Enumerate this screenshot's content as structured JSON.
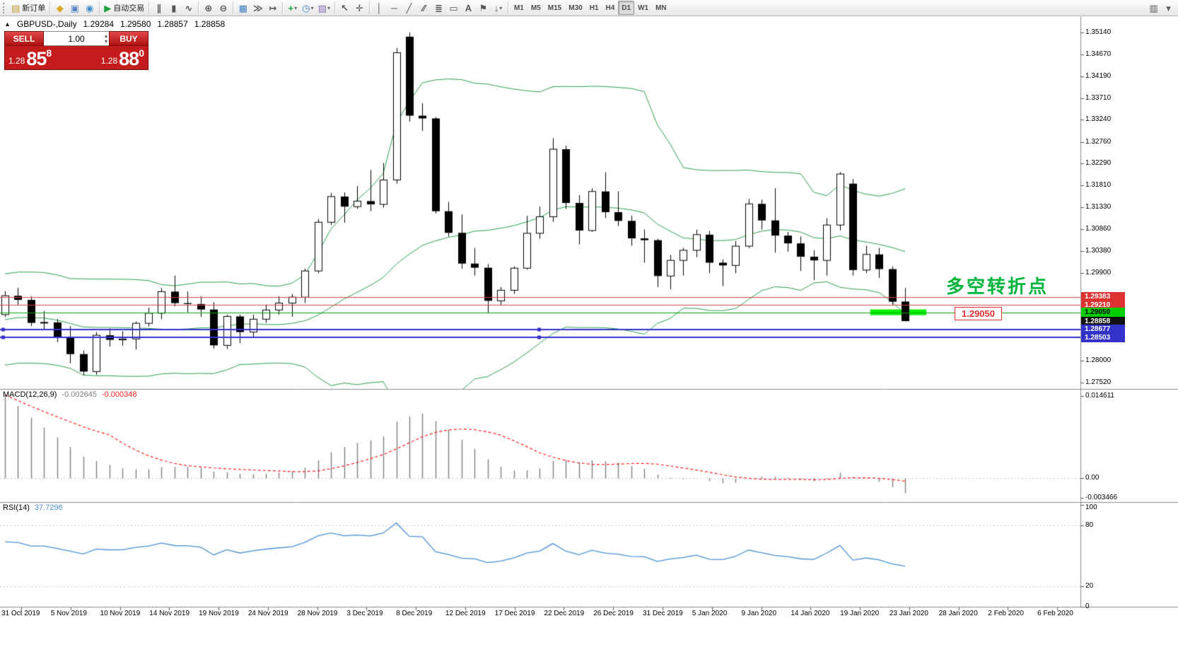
{
  "toolbar": {
    "groups": [
      [
        {
          "name": "new-order-button",
          "glyph": "▤",
          "glyph_color": "#c59a30",
          "label": "新订单"
        }
      ],
      [
        {
          "name": "symbols-button",
          "glyph": "◆",
          "glyph_color": "#d8a820"
        },
        {
          "name": "data-window-button",
          "glyph": "▣",
          "glyph_color": "#5b87c5"
        },
        {
          "name": "navigator-button",
          "glyph": "◉",
          "glyph_color": "#3f8fd0"
        }
      ],
      [
        {
          "name": "autotrading-button",
          "glyph": "▶",
          "glyph_color": "#1fa33c",
          "label": "自动交易"
        }
      ],
      [
        {
          "name": "ohlc-bars-button",
          "glyph": "∥"
        },
        {
          "name": "candlestick-chart-button",
          "glyph": "▮"
        },
        {
          "name": "line-chart-button",
          "glyph": "∿"
        }
      ],
      [
        {
          "name": "zoom-in-button",
          "glyph": "⊕"
        },
        {
          "name": "zoom-out-button",
          "glyph": "⊖"
        }
      ],
      [
        {
          "name": "tile-windows-button",
          "glyph": "▦",
          "glyph_color": "#3f7fbf"
        },
        {
          "name": "auto-scroll-button",
          "glyph": "≫"
        },
        {
          "name": "chart-shift-button",
          "glyph": "↦"
        }
      ],
      [
        {
          "name": "indicators-button",
          "glyph": "+",
          "glyph_color": "#1fa33c",
          "dropdown": true
        },
        {
          "name": "periods-button",
          "glyph": "◷",
          "glyph_color": "#3f7fbf",
          "dropdown": true
        },
        {
          "name": "templates-button",
          "glyph": "▨",
          "glyph_color": "#8a6fae",
          "dropdown": true
        }
      ],
      [
        {
          "name": "cursor-button",
          "glyph": "↖"
        },
        {
          "name": "crosshair-button",
          "glyph": "✛"
        }
      ],
      [
        {
          "name": "vertical-line-button",
          "glyph": "│"
        },
        {
          "name": "horizontal-line-button",
          "glyph": "─"
        },
        {
          "name": "trendline-button",
          "glyph": "╱"
        },
        {
          "name": "equidistant-channel-button",
          "glyph": "∕∕"
        },
        {
          "name": "fibonacci-button",
          "glyph": "≣"
        },
        {
          "name": "shapes-button",
          "glyph": "▭"
        },
        {
          "name": "text-button",
          "glyph": "A"
        },
        {
          "name": "text-label-button",
          "glyph": "⚑"
        },
        {
          "name": "arrows-button",
          "glyph": "↓",
          "dropdown": true
        }
      ],
      [
        {
          "name": "timeframe-m1-button",
          "text": "M1"
        },
        {
          "name": "timeframe-m5-button",
          "text": "M5"
        },
        {
          "name": "timeframe-m15-button",
          "text": "M15"
        },
        {
          "name": "timeframe-m30-button",
          "text": "M30"
        },
        {
          "name": "timeframe-h1-button",
          "text": "H1"
        },
        {
          "name": "timeframe-h4-button",
          "text": "H4"
        },
        {
          "name": "timeframe-d1-button",
          "text": "D1",
          "active": true
        },
        {
          "name": "timeframe-w1-button",
          "text": "W1"
        },
        {
          "name": "timeframe-mn-button",
          "text": "MN"
        }
      ]
    ],
    "right": [
      {
        "name": "chart-profile-button",
        "glyph": "▥"
      },
      {
        "name": "toolbar-options-button",
        "glyph": "▾"
      }
    ]
  },
  "chart": {
    "info": {
      "collapse_icon": "▲",
      "symbol": "GBPUSD-,Daily",
      "open": "1.29284",
      "high": "1.29580",
      "low": "1.28857",
      "close": "1.28858"
    },
    "one_click": {
      "sell_label": "SELL",
      "buy_label": "BUY",
      "volume": "1.00",
      "spin_up_icon": "▴",
      "spin_down_icon": "▾",
      "sell_price_head": "1.28",
      "sell_price_big": "85",
      "sell_price_pip": "8",
      "buy_price_head": "1.28",
      "buy_price_big": "88",
      "buy_price_pip": "0"
    },
    "annotation": {
      "text": "多空转折点",
      "color": "#00b43c"
    },
    "price_label_box": {
      "text": "1.29050",
      "color": "#e03030"
    },
    "price_axis": {
      "labels": [
        "1.35140",
        "1.34670",
        "1.34190",
        "1.33710",
        "1.33240",
        "1.32760",
        "1.32290",
        "1.31810",
        "1.31330",
        "1.30860",
        "1.30380",
        "1.29900",
        "1.28000",
        "1.27520"
      ],
      "tags": [
        {
          "text": "1.29383",
          "bg": "#dd3333",
          "fg": "#ffffff"
        },
        {
          "text": "1.29210",
          "bg": "#dd3333",
          "fg": "#ffffff"
        },
        {
          "text": "1.29050",
          "bg": "#00cc00",
          "fg": "#000000"
        },
        {
          "text": "1.28858",
          "bg": "#111111",
          "fg": "#ffffff"
        },
        {
          "text": "1.28677",
          "bg": "#3333cc",
          "fg": "#ffffff"
        },
        {
          "text": "1.28503",
          "bg": "#3333cc",
          "fg": "#ffffff"
        }
      ]
    }
  },
  "macd": {
    "name": "MACD(12,26,9)",
    "main_value": "-0.002645",
    "signal_value": "-0.000348",
    "axis": [
      "0.014611",
      "0.00",
      "-0.003466"
    ]
  },
  "rsi": {
    "name": "RSI(14)",
    "value": "37.7296",
    "axis": [
      "100",
      "80",
      "20",
      "0"
    ]
  },
  "time_axis": {
    "dates": [
      "31 Oct 2019",
      "5 Nov 2019",
      "10 Nov 2019",
      "14 Nov 2019",
      "19 Nov 2019",
      "24 Nov 2019",
      "28 Nov 2019",
      "3 Dec 2019",
      "8 Dec 2019",
      "12 Dec 2019",
      "17 Dec 2019",
      "22 Dec 2019",
      "26 Dec 2019",
      "31 Dec 2019",
      "5 Jan 2020",
      "9 Jan 2020",
      "14 Jan 2020",
      "19 Jan 2020",
      "23 Jan 2020",
      "28 Jan 2020",
      "2 Feb 2020",
      "6 Feb 2020"
    ]
  },
  "chart_data": {
    "type": "candlestick",
    "symbol": "GBPUSD",
    "timeframe": "Daily",
    "y_axis_range": [
      1.2752,
      1.3514
    ],
    "x_axis_dates": [
      "31 Oct 2019",
      "5 Nov 2019",
      "10 Nov 2019",
      "14 Nov 2019",
      "19 Nov 2019",
      "24 Nov 2019",
      "28 Nov 2019",
      "3 Dec 2019",
      "8 Dec 2019",
      "12 Dec 2019",
      "17 Dec 2019",
      "22 Dec 2019",
      "26 Dec 2019",
      "31 Dec 2019",
      "5 Jan 2020",
      "9 Jan 2020",
      "14 Jan 2020",
      "19 Jan 2020",
      "23 Jan 2020",
      "28 Jan 2020",
      "2 Feb 2020",
      "6 Feb 2020"
    ],
    "candles_ohlc": [
      [
        1.29,
        1.2951,
        1.2895,
        1.2941
      ],
      [
        1.2941,
        1.2958,
        1.292,
        1.2932
      ],
      [
        1.2932,
        1.294,
        1.2875,
        1.2882
      ],
      [
        1.2882,
        1.2908,
        1.2869,
        1.2883
      ],
      [
        1.2883,
        1.289,
        1.284,
        1.2851
      ],
      [
        1.2851,
        1.2875,
        1.2794,
        1.2814
      ],
      [
        1.2814,
        1.2822,
        1.2768,
        1.2776
      ],
      [
        1.2776,
        1.2862,
        1.2769,
        1.2855
      ],
      [
        1.2855,
        1.287,
        1.283,
        1.2845
      ],
      [
        1.2845,
        1.2864,
        1.2832,
        1.2847
      ],
      [
        1.2847,
        1.2885,
        1.2824,
        1.2881
      ],
      [
        1.2881,
        1.2915,
        1.2874,
        1.2903
      ],
      [
        1.2903,
        1.2958,
        1.289,
        1.295
      ],
      [
        1.295,
        1.2985,
        1.2918,
        1.2925
      ],
      [
        1.2925,
        1.295,
        1.2905,
        1.2923
      ],
      [
        1.2923,
        1.294,
        1.2895,
        1.2911
      ],
      [
        1.2911,
        1.2927,
        1.2826,
        1.2833
      ],
      [
        1.2833,
        1.29,
        1.2825,
        1.2896
      ],
      [
        1.2896,
        1.29,
        1.2838,
        1.2862
      ],
      [
        1.2862,
        1.29,
        1.285,
        1.289
      ],
      [
        1.289,
        1.2922,
        1.2882,
        1.291
      ],
      [
        1.291,
        1.294,
        1.29,
        1.2925
      ],
      [
        1.2925,
        1.2945,
        1.2895,
        1.2938
      ],
      [
        1.2938,
        1.3,
        1.2925,
        1.2995
      ],
      [
        1.2995,
        1.3108,
        1.299,
        1.3101
      ],
      [
        1.3101,
        1.3165,
        1.3095,
        1.3157
      ],
      [
        1.3157,
        1.3166,
        1.31,
        1.3135
      ],
      [
        1.3135,
        1.318,
        1.313,
        1.3147
      ],
      [
        1.3147,
        1.3215,
        1.3125,
        1.314
      ],
      [
        1.314,
        1.323,
        1.3133,
        1.3193
      ],
      [
        1.3193,
        1.348,
        1.3185,
        1.347
      ],
      [
        1.3505,
        1.3514,
        1.332,
        1.3333
      ],
      [
        1.3333,
        1.336,
        1.33,
        1.3327
      ],
      [
        1.3327,
        1.333,
        1.312,
        1.3125
      ],
      [
        1.3125,
        1.3145,
        1.307,
        1.3078
      ],
      [
        1.3078,
        1.3118,
        1.3,
        1.3011
      ],
      [
        1.3011,
        1.3045,
        1.2985,
        1.3002
      ],
      [
        1.3002,
        1.301,
        1.2904,
        1.293
      ],
      [
        1.293,
        1.296,
        1.292,
        1.2953
      ],
      [
        1.2953,
        1.3005,
        1.2945,
        1.3001
      ],
      [
        1.3001,
        1.3115,
        1.2998,
        1.3077
      ],
      [
        1.3077,
        1.3135,
        1.3065,
        1.3113
      ],
      [
        1.3113,
        1.3284,
        1.3102,
        1.326
      ],
      [
        1.326,
        1.3268,
        1.313,
        1.3143
      ],
      [
        1.3143,
        1.316,
        1.3053,
        1.3083
      ],
      [
        1.3083,
        1.3175,
        1.308,
        1.3168
      ],
      [
        1.3168,
        1.321,
        1.311,
        1.3123
      ],
      [
        1.3123,
        1.3168,
        1.3093,
        1.3104
      ],
      [
        1.3104,
        1.3115,
        1.305,
        1.3066
      ],
      [
        1.3066,
        1.3085,
        1.3013,
        1.3062
      ],
      [
        1.3062,
        1.3065,
        1.296,
        1.2984
      ],
      [
        1.2984,
        1.303,
        1.2955,
        1.3018
      ],
      [
        1.3018,
        1.3045,
        1.2985,
        1.304
      ],
      [
        1.304,
        1.3085,
        1.3025,
        1.3074
      ],
      [
        1.3074,
        1.3082,
        1.299,
        1.3013
      ],
      [
        1.3013,
        1.302,
        1.2962,
        1.3007
      ],
      [
        1.3007,
        1.306,
        1.299,
        1.3049
      ],
      [
        1.3049,
        1.3152,
        1.3045,
        1.3141
      ],
      [
        1.3141,
        1.315,
        1.3085,
        1.3105
      ],
      [
        1.3105,
        1.3175,
        1.3035,
        1.3072
      ],
      [
        1.3072,
        1.308,
        1.3037,
        1.3055
      ],
      [
        1.3055,
        1.307,
        1.2995,
        1.3026
      ],
      [
        1.3026,
        1.304,
        1.2975,
        1.3018
      ],
      [
        1.3018,
        1.311,
        1.2985,
        1.3095
      ],
      [
        1.3095,
        1.321,
        1.3083,
        1.3206
      ],
      [
        1.3185,
        1.3195,
        1.2985,
        1.2997
      ],
      [
        1.2997,
        1.305,
        1.299,
        1.3031
      ],
      [
        1.3031,
        1.3045,
        1.298,
        1.2999
      ],
      [
        1.2999,
        1.3005,
        1.292,
        1.2928
      ],
      [
        1.29284,
        1.2958,
        1.28857,
        1.28858
      ]
    ],
    "warmup_closes": [
      1.285,
      1.288,
      1.2905,
      1.2938,
      1.296,
      1.293,
      1.2875,
      1.2845,
      1.2862,
      1.289,
      1.292,
      1.2985,
      1.294,
      1.2895,
      1.2865,
      1.2835,
      1.281,
      1.279,
      1.287
    ],
    "indicators": {
      "bollinger": {
        "period": 20,
        "deviation": 2
      },
      "macd": {
        "fast": 12,
        "slow": 26,
        "signal": 9,
        "last_main": -0.002645,
        "last_signal": -0.000348,
        "axis_max": 0.014611,
        "axis_min": -0.003466,
        "seed_ema_fast": 1.306,
        "seed_ema_slow": 1.289
      },
      "rsi": {
        "period": 14,
        "last": 37.7296,
        "levels": [
          80,
          20
        ],
        "range": [
          0,
          100
        ],
        "seed_avg_gain": 0.0042,
        "seed_avg_loss": 0.0027
      }
    },
    "hlines": [
      {
        "value": 1.29383,
        "color": "#dd4444",
        "width": 1
      },
      {
        "value": 1.2921,
        "color": "#dd4444",
        "width": 1
      },
      {
        "value": 1.2905,
        "color": "#00a800",
        "width": 1
      },
      {
        "value": 1.28677,
        "color": "#3333cc",
        "width": 2,
        "selected": true
      },
      {
        "value": 1.28503,
        "color": "#3333cc",
        "width": 2,
        "selected": true
      }
    ],
    "highlight": {
      "value": 1.2905,
      "color": "#00f000"
    }
  },
  "colors": {
    "bull_body": "#ffffff",
    "bear_body": "#000000",
    "candle_outline": "#000000",
    "bollinger": "#2da050",
    "macd_histogram": "#7f7f7f",
    "macd_signal": "#ff2020",
    "rsi_line": "#4a8fd4",
    "level_dotted": "#c8c8c8",
    "separator": "#8c8c8c",
    "axis_text": "#000000",
    "annotation_green": "#00b43c",
    "price_box_red": "#e03030",
    "highlight_green": "#00f000",
    "sell_buy_red": "#c41c1c"
  }
}
